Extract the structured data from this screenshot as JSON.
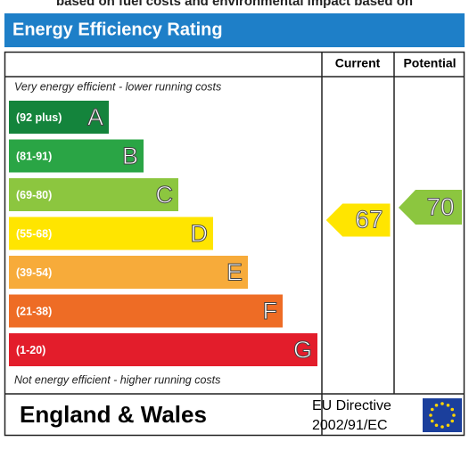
{
  "top_text": "based on fuel costs and environmental impact based on",
  "header": {
    "title": "Energy Efficiency Rating"
  },
  "columns": {
    "current": "Current",
    "potential": "Potential"
  },
  "top_note": "Very energy efficient - lower running costs",
  "bottom_note": "Not energy efficient - higher running costs",
  "bands": [
    {
      "range": "(92 plus)",
      "letter": "A",
      "color": "#14843c"
    },
    {
      "range": "(81-91)",
      "letter": "B",
      "color": "#2aa545"
    },
    {
      "range": "(69-80)",
      "letter": "C",
      "color": "#8cc63f"
    },
    {
      "range": "(55-68)",
      "letter": "D",
      "color": "#ffe500"
    },
    {
      "range": "(39-54)",
      "letter": "E",
      "color": "#f7ab3a"
    },
    {
      "range": "(21-38)",
      "letter": "F",
      "color": "#ee6c25"
    },
    {
      "range": "(1-20)",
      "letter": "G",
      "color": "#e31d2b"
    }
  ],
  "current": {
    "value": "67",
    "color": "#ffe500"
  },
  "potential": {
    "value": "70",
    "color": "#8cc63f"
  },
  "footer": {
    "region": "England & Wales",
    "directive_line1": "EU Directive",
    "directive_line2": "2002/91/EC"
  }
}
